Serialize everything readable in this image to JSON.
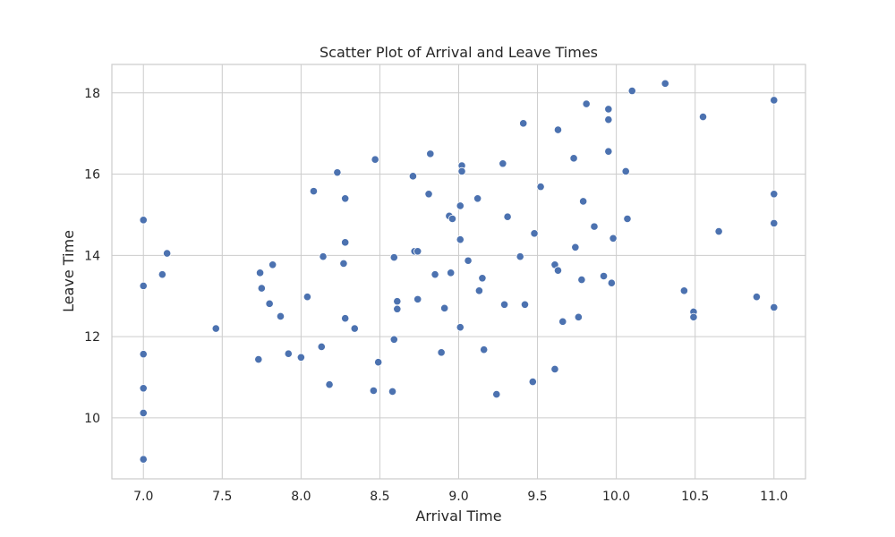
{
  "chart_data": {
    "type": "scatter",
    "title": "Scatter Plot of Arrival and Leave Times",
    "xlabel": "Arrival Time",
    "ylabel": "Leave Time",
    "xlim": [
      6.8,
      11.2
    ],
    "ylim": [
      8.5,
      18.7
    ],
    "xticks": [
      7.0,
      7.5,
      8.0,
      8.5,
      9.0,
      9.5,
      10.0,
      10.5,
      11.0
    ],
    "xtick_labels": [
      "7.0",
      "7.5",
      "8.0",
      "8.5",
      "9.0",
      "9.5",
      "10.0",
      "10.5",
      "11.0"
    ],
    "yticks": [
      10,
      12,
      14,
      16,
      18
    ],
    "ytick_labels": [
      "10",
      "12",
      "14",
      "16",
      "18"
    ],
    "grid": true,
    "color": "#4c72b0",
    "points": [
      [
        7.0,
        14.87
      ],
      [
        7.0,
        13.25
      ],
      [
        7.0,
        11.57
      ],
      [
        7.0,
        10.73
      ],
      [
        7.0,
        10.12
      ],
      [
        7.0,
        8.98
      ],
      [
        7.12,
        13.53
      ],
      [
        7.15,
        14.05
      ],
      [
        7.46,
        12.2
      ],
      [
        7.73,
        11.44
      ],
      [
        7.74,
        13.57
      ],
      [
        7.75,
        13.19
      ],
      [
        7.8,
        12.81
      ],
      [
        7.82,
        13.77
      ],
      [
        7.87,
        12.5
      ],
      [
        7.92,
        11.58
      ],
      [
        8.0,
        11.49
      ],
      [
        8.04,
        12.98
      ],
      [
        8.08,
        15.58
      ],
      [
        8.13,
        11.75
      ],
      [
        8.14,
        13.97
      ],
      [
        8.18,
        10.82
      ],
      [
        8.23,
        16.04
      ],
      [
        8.27,
        13.8
      ],
      [
        8.28,
        15.4
      ],
      [
        8.28,
        14.32
      ],
      [
        8.28,
        12.45
      ],
      [
        8.34,
        12.2
      ],
      [
        8.46,
        10.67
      ],
      [
        8.47,
        16.36
      ],
      [
        8.49,
        11.37
      ],
      [
        8.58,
        10.65
      ],
      [
        8.59,
        13.95
      ],
      [
        8.59,
        11.93
      ],
      [
        8.61,
        12.87
      ],
      [
        8.61,
        12.68
      ],
      [
        8.71,
        15.95
      ],
      [
        8.72,
        14.1
      ],
      [
        8.74,
        14.1
      ],
      [
        8.74,
        12.92
      ],
      [
        8.81,
        15.51
      ],
      [
        8.82,
        16.5
      ],
      [
        8.85,
        13.53
      ],
      [
        8.89,
        11.61
      ],
      [
        8.91,
        12.7
      ],
      [
        8.94,
        14.97
      ],
      [
        8.95,
        13.57
      ],
      [
        8.96,
        14.9
      ],
      [
        9.01,
        15.22
      ],
      [
        9.01,
        14.39
      ],
      [
        9.01,
        12.23
      ],
      [
        9.02,
        16.21
      ],
      [
        9.02,
        16.07
      ],
      [
        9.06,
        13.87
      ],
      [
        9.12,
        15.4
      ],
      [
        9.13,
        13.13
      ],
      [
        9.15,
        13.44
      ],
      [
        9.16,
        11.68
      ],
      [
        9.24,
        10.58
      ],
      [
        9.28,
        16.26
      ],
      [
        9.29,
        12.79
      ],
      [
        9.31,
        14.95
      ],
      [
        9.39,
        13.97
      ],
      [
        9.41,
        17.25
      ],
      [
        9.42,
        12.79
      ],
      [
        9.47,
        10.89
      ],
      [
        9.48,
        14.54
      ],
      [
        9.52,
        15.69
      ],
      [
        9.61,
        13.77
      ],
      [
        9.61,
        11.2
      ],
      [
        9.63,
        17.09
      ],
      [
        9.63,
        13.63
      ],
      [
        9.66,
        12.37
      ],
      [
        9.73,
        16.39
      ],
      [
        9.74,
        14.2
      ],
      [
        9.76,
        12.48
      ],
      [
        9.78,
        13.4
      ],
      [
        9.79,
        15.33
      ],
      [
        9.81,
        17.73
      ],
      [
        9.86,
        14.71
      ],
      [
        9.92,
        13.49
      ],
      [
        9.95,
        17.6
      ],
      [
        9.95,
        17.34
      ],
      [
        9.95,
        16.56
      ],
      [
        9.97,
        13.32
      ],
      [
        9.98,
        14.42
      ],
      [
        10.06,
        16.07
      ],
      [
        10.07,
        14.9
      ],
      [
        10.1,
        18.05
      ],
      [
        10.31,
        18.23
      ],
      [
        10.43,
        13.13
      ],
      [
        10.49,
        12.61
      ],
      [
        10.49,
        12.48
      ],
      [
        10.55,
        17.41
      ],
      [
        10.65,
        14.59
      ],
      [
        10.89,
        12.98
      ],
      [
        11.0,
        17.82
      ],
      [
        11.0,
        15.51
      ],
      [
        11.0,
        14.79
      ],
      [
        11.0,
        12.72
      ]
    ]
  }
}
